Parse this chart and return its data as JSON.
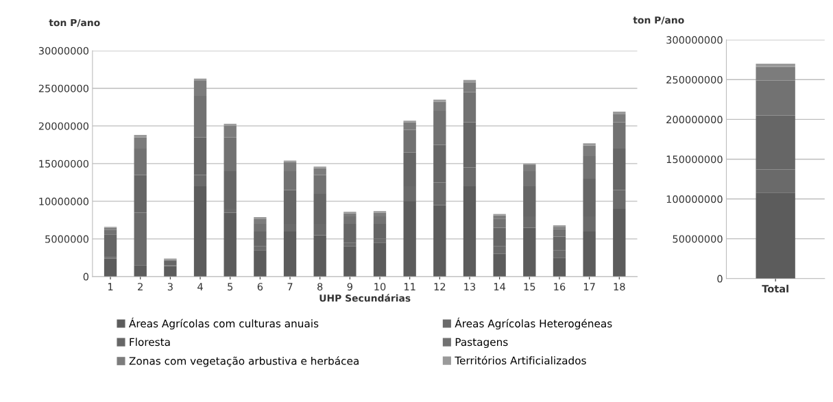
{
  "chart_data": [
    {
      "type": "bar",
      "stacked": true,
      "ylabel": "ton P/ano",
      "xlabel": "UHP Secundárias",
      "categories": [
        "1",
        "2",
        "3",
        "4",
        "5",
        "6",
        "7",
        "8",
        "9",
        "10",
        "11",
        "12",
        "13",
        "14",
        "15",
        "16",
        "17",
        "18"
      ],
      "ylim": [
        0,
        30000000
      ],
      "yticks": [
        0,
        5000000,
        10000000,
        15000000,
        20000000,
        25000000,
        30000000
      ],
      "grid": "y",
      "legend": "bottom",
      "series": [
        {
          "name": "Áreas Agrícolas com culturas anuais",
          "color": "#5c5c5c",
          "values": [
            2400000,
            1500000,
            1400000,
            12000000,
            8500000,
            3500000,
            6000000,
            5500000,
            4000000,
            4500000,
            10000000,
            9500000,
            12000000,
            3000000,
            6500000,
            2500000,
            6000000,
            9000000
          ]
        },
        {
          "name": "Áreas Agrícolas Heterogéneas",
          "color": "#6a6a6a",
          "values": [
            200000,
            7000000,
            100000,
            1500000,
            500000,
            500000,
            1000000,
            1500000,
            500000,
            500000,
            2000000,
            3000000,
            2500000,
            1000000,
            1500000,
            1000000,
            2000000,
            2500000
          ]
        },
        {
          "name": "Floresta",
          "color": "#666666",
          "values": [
            3000000,
            5000000,
            600000,
            5000000,
            5000000,
            2000000,
            4500000,
            4000000,
            2500000,
            2000000,
            4500000,
            5000000,
            6000000,
            2500000,
            4000000,
            1800000,
            5000000,
            5500000
          ]
        },
        {
          "name": "Pastagens",
          "color": "#727272",
          "values": [
            600000,
            3500000,
            100000,
            5500000,
            4500000,
            1000000,
            2500000,
            2500000,
            1000000,
            1000000,
            3000000,
            4500000,
            4000000,
            1200000,
            2000000,
            1000000,
            3000000,
            3500000
          ]
        },
        {
          "name": "Zonas com vegetação arbustiva e herbácea",
          "color": "#7c7c7c",
          "values": [
            300000,
            1500000,
            100000,
            2000000,
            1500000,
            700000,
            1200000,
            900000,
            400000,
            500000,
            1000000,
            1200000,
            1300000,
            400000,
            800000,
            300000,
            1400000,
            1100000
          ]
        },
        {
          "name": "Territórios Artificializados",
          "color": "#9a9a9a",
          "values": [
            100000,
            300000,
            100000,
            300000,
            300000,
            200000,
            200000,
            200000,
            200000,
            200000,
            200000,
            300000,
            300000,
            200000,
            200000,
            200000,
            300000,
            300000
          ]
        }
      ]
    },
    {
      "type": "bar",
      "stacked": true,
      "ylabel": "ton P/ano",
      "categories": [
        "Total"
      ],
      "ylim": [
        0,
        300000000
      ],
      "yticks": [
        0,
        50000000,
        100000000,
        150000000,
        200000000,
        250000000,
        300000000
      ],
      "grid": "y",
      "series": [
        {
          "color": "#5c5c5c",
          "values": [
            108000000
          ]
        },
        {
          "color": "#6a6a6a",
          "values": [
            29000000
          ]
        },
        {
          "color": "#666666",
          "values": [
            68000000
          ]
        },
        {
          "color": "#727272",
          "values": [
            44000000
          ]
        },
        {
          "color": "#7c7c7c",
          "values": [
            17000000
          ]
        },
        {
          "color": "#9a9a9a",
          "values": [
            4000000
          ]
        }
      ]
    }
  ]
}
